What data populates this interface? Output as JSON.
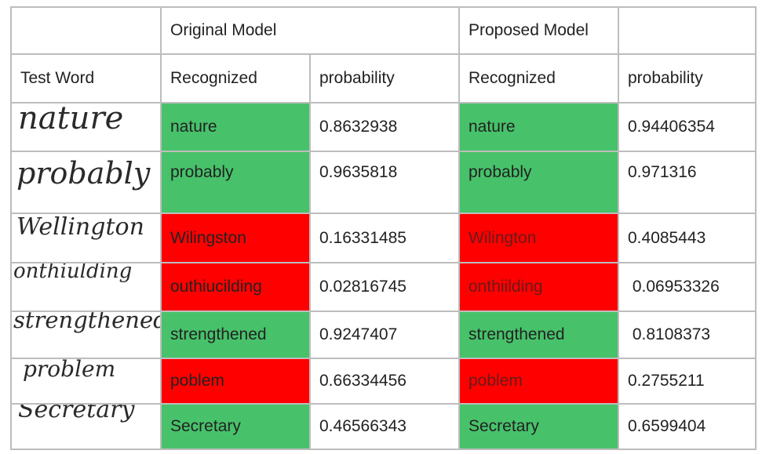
{
  "header": {
    "original_model": "Original Model",
    "proposed_model": "Proposed Model",
    "test_word": "Test Word",
    "recognized": "Recognized",
    "probability": "probability"
  },
  "rows": [
    {
      "handwritten": "nature",
      "orig_recognized": "nature",
      "orig_prob": "0.8632938",
      "orig_status": "correct",
      "prop_recognized": "nature",
      "prop_prob": "0.94406354",
      "prop_status": "correct"
    },
    {
      "handwritten": "probably",
      "orig_recognized": "probably",
      "orig_prob": "0.9635818",
      "orig_status": "correct",
      "prop_recognized": "probably",
      "prop_prob": "0.971316",
      "prop_status": "correct"
    },
    {
      "handwritten": "Wellington",
      "orig_recognized": "Wilingston",
      "orig_prob": "0.16331485",
      "orig_status": "incorrect",
      "prop_recognized": "Wilington",
      "prop_prob": "0.4085443",
      "prop_status": "incorrect"
    },
    {
      "handwritten": "onthiulding",
      "orig_recognized": "outhiucilding",
      "orig_prob": "0.02816745",
      "orig_status": "incorrect",
      "prop_recognized": "onthiilding",
      "prop_prob": " 0.06953326",
      "prop_status": "incorrect"
    },
    {
      "handwritten": "strengthened",
      "orig_recognized": "strengthened",
      "orig_prob": "0.9247407",
      "orig_status": "correct",
      "prop_recognized": "strengthened",
      "prop_prob": " 0.8108373",
      "prop_status": "correct"
    },
    {
      "handwritten": "problem",
      "orig_recognized": "poblem",
      "orig_prob": "0.66334456",
      "orig_status": "incorrect",
      "prop_recognized": "poblem",
      "prop_prob": "0.2755211",
      "prop_status": "incorrect"
    },
    {
      "handwritten": "Secretary",
      "orig_recognized": "Secretary",
      "orig_prob": "0.46566343",
      "orig_status": "correct",
      "prop_recognized": "Secretary",
      "prop_prob": "0.6599404",
      "prop_status": "correct"
    }
  ],
  "colors": {
    "correct": "#47c26a",
    "incorrect": "#ff0000",
    "border": "#bdbdbd"
  }
}
